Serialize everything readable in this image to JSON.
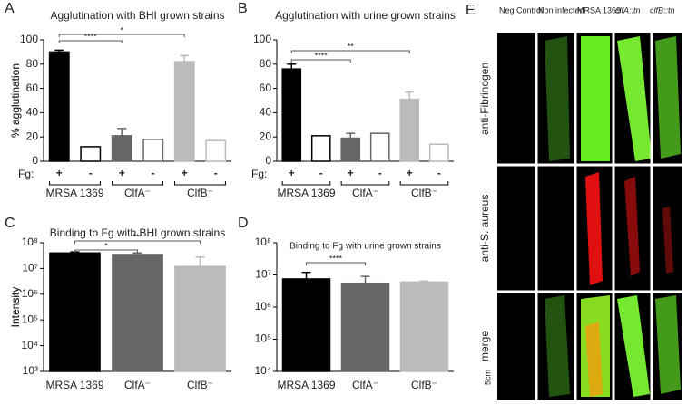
{
  "chart_data": [
    {
      "type": "bar",
      "panel": "A",
      "title": "Agglutination with BHI grown strains",
      "y_label": "% agglutination",
      "fg_label": "Fg:",
      "categories": [
        "+",
        "-",
        "+",
        "-",
        "+",
        "-"
      ],
      "groups": [
        "MRSA 1369",
        "ClfA⁻",
        "ClfB⁻"
      ],
      "values": [
        90,
        12,
        21,
        18,
        82,
        17
      ],
      "errors": [
        1.5,
        0,
        6,
        0,
        5,
        0
      ],
      "colors": [
        "#000000",
        "#ffffff",
        "#666666",
        "#ffffff",
        "#bbbbbb",
        "#ffffff"
      ],
      "edge_colors": [
        "#000000",
        "#000000",
        "#666666",
        "#666666",
        "#bbbbbb",
        "#bbbbbb"
      ],
      "annotations": [
        "****",
        "*"
      ],
      "ylim": [
        0,
        100
      ],
      "yticks": [
        0,
        20,
        40,
        60,
        80,
        100
      ]
    },
    {
      "type": "bar",
      "panel": "B",
      "title": "Agglutination with urine grown strains",
      "y_label": "% agglutination",
      "fg_label": "Fg:",
      "categories": [
        "+",
        "-",
        "+",
        "-",
        "+",
        "-"
      ],
      "groups": [
        "MRSA 1369",
        "ClfA⁻",
        "ClfB⁻"
      ],
      "values": [
        76,
        21,
        19,
        23,
        51,
        14
      ],
      "errors": [
        4,
        0,
        4,
        0,
        6,
        0
      ],
      "colors": [
        "#000000",
        "#ffffff",
        "#666666",
        "#ffffff",
        "#bbbbbb",
        "#ffffff"
      ],
      "edge_colors": [
        "#000000",
        "#000000",
        "#666666",
        "#666666",
        "#bbbbbb",
        "#bbbbbb"
      ],
      "annotations": [
        "****",
        "**"
      ],
      "ylim": [
        0,
        100
      ],
      "yticks": [
        0,
        20,
        40,
        60,
        80,
        100
      ]
    },
    {
      "type": "bar",
      "panel": "C",
      "title": "Binding to Fg with BHI grown strains",
      "y_label": "Intensity",
      "categories": [
        "MRSA 1369",
        "ClfA⁻",
        "ClfB⁻"
      ],
      "values": [
        40000000,
        35000000,
        12000000
      ],
      "errors": [
        4000000,
        5000000,
        16000000
      ],
      "colors": [
        "#000000",
        "#666666",
        "#bbbbbb"
      ],
      "edge_colors": [
        "#000000",
        "#666666",
        "#bbbbbb"
      ],
      "annotations": [
        "*",
        "***"
      ],
      "log_scale": true,
      "ylim": [
        1000,
        100000000
      ],
      "yticks": [
        {
          "value": 1000,
          "label": "10³"
        },
        {
          "value": 10000,
          "label": "10⁴"
        },
        {
          "value": 100000,
          "label": "10⁵"
        },
        {
          "value": 1000000,
          "label": "10⁶"
        },
        {
          "value": 10000000,
          "label": "10⁷"
        },
        {
          "value": 100000000,
          "label": "10⁸"
        }
      ]
    },
    {
      "type": "bar",
      "panel": "D",
      "title": "Binding to Fg with urine grown strains",
      "y_label": "Intensity",
      "categories": [
        "MRSA 1369",
        "ClfA⁻",
        "ClfB⁻"
      ],
      "values": [
        7500000,
        5500000,
        6000000
      ],
      "errors": [
        4500000,
        3500000,
        500000
      ],
      "colors": [
        "#000000",
        "#666666",
        "#bbbbbb"
      ],
      "edge_colors": [
        "#000000",
        "#666666",
        "#bbbbbb"
      ],
      "annotations": [
        "****"
      ],
      "log_scale": true,
      "ylim": [
        10000,
        100000000
      ],
      "yticks": [
        {
          "value": 10000,
          "label": "10⁴"
        },
        {
          "value": 100000,
          "label": "10⁵"
        },
        {
          "value": 1000000,
          "label": "10⁶"
        },
        {
          "value": 10000000,
          "label": "10⁷"
        },
        {
          "value": 100000000,
          "label": "10⁸"
        }
      ]
    }
  ],
  "microscopy": {
    "panel": "E",
    "columns": [
      "Neg Control",
      "Non infected",
      "MRSA 1369",
      "clfA::tn",
      "clfB::tn"
    ],
    "rows": [
      "anti-Fibrinogen",
      "anti-S. aureus",
      "merge"
    ],
    "scale": "5cm"
  }
}
